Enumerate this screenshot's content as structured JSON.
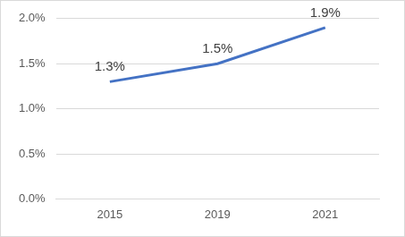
{
  "chart_data": {
    "type": "line",
    "categories": [
      "2015",
      "2019",
      "2021"
    ],
    "values": [
      1.3,
      1.5,
      1.9
    ],
    "value_labels": [
      "1.3%",
      "1.5%",
      "1.9%"
    ],
    "color": "#4472c4",
    "ylim": [
      0,
      2
    ],
    "yticks": [
      {
        "value": 0,
        "label": "0.0%"
      },
      {
        "value": 0.5,
        "label": "0.5%"
      },
      {
        "value": 1,
        "label": "1.0%"
      },
      {
        "value": 1.5,
        "label": "1.5%"
      },
      {
        "value": 2,
        "label": "2.0%"
      }
    ],
    "grid": true,
    "data_labels": true
  }
}
